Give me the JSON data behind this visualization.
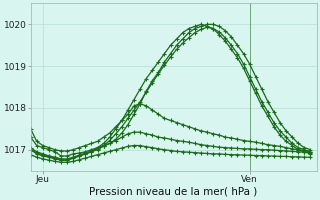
{
  "background_color": "#d8f5f0",
  "grid_color": "#b8ddd8",
  "line_color": "#1a6b1a",
  "xlabel": "Pression niveau de la mer( hPa )",
  "xlim": [
    0,
    47
  ],
  "ylim": [
    1016.5,
    1020.5
  ],
  "yticks": [
    1017,
    1018,
    1019,
    1020
  ],
  "xtick_labels": [
    "Jeu",
    "Ven"
  ],
  "xtick_positions": [
    2,
    36
  ],
  "vline_x": 36,
  "series": [
    [
      1017.3,
      1017.1,
      1017.05,
      1017.0,
      1016.95,
      1016.85,
      1016.85,
      1016.9,
      1016.92,
      1016.95,
      1017.0,
      1017.05,
      1017.1,
      1017.15,
      1017.25,
      1017.4,
      1017.6,
      1017.85,
      1018.1,
      1018.4,
      1018.65,
      1018.85,
      1019.1,
      1019.3,
      1019.5,
      1019.65,
      1019.8,
      1019.9,
      1019.95,
      1020.0,
      1020.0,
      1019.95,
      1019.85,
      1019.7,
      1019.5,
      1019.3,
      1019.05,
      1018.75,
      1018.45,
      1018.15,
      1017.9,
      1017.65,
      1017.45,
      1017.3,
      1017.15,
      1017.05,
      1017.0
    ],
    [
      1017.05,
      1016.95,
      1016.9,
      1016.85,
      1016.8,
      1016.75,
      1016.75,
      1016.8,
      1016.85,
      1016.9,
      1016.95,
      1017.05,
      1017.15,
      1017.3,
      1017.5,
      1017.7,
      1017.95,
      1018.2,
      1018.45,
      1018.7,
      1018.9,
      1019.1,
      1019.3,
      1019.5,
      1019.65,
      1019.8,
      1019.9,
      1019.95,
      1020.0,
      1019.95,
      1019.9,
      1019.75,
      1019.6,
      1019.4,
      1019.2,
      1018.95,
      1018.65,
      1018.35,
      1018.05,
      1017.8,
      1017.55,
      1017.35,
      1017.2,
      1017.1,
      1017.0,
      1016.95,
      1016.9
    ],
    [
      1017.0,
      1016.9,
      1016.85,
      1016.82,
      1016.78,
      1016.75,
      1016.75,
      1016.8,
      1016.85,
      1016.9,
      1016.95,
      1017.0,
      1017.1,
      1017.22,
      1017.38,
      1017.55,
      1017.75,
      1017.95,
      1018.15,
      1018.38,
      1018.6,
      1018.82,
      1019.02,
      1019.22,
      1019.4,
      1019.55,
      1019.68,
      1019.8,
      1019.88,
      1019.93,
      1019.9,
      1019.82,
      1019.68,
      1019.5,
      1019.3,
      1019.05,
      1018.75,
      1018.45,
      1018.15,
      1017.9,
      1017.65,
      1017.45,
      1017.3,
      1017.15,
      1017.05,
      1017.0,
      1016.95
    ],
    [
      1017.5,
      1017.2,
      1017.1,
      1017.05,
      1017.0,
      1016.97,
      1016.97,
      1017.0,
      1017.05,
      1017.1,
      1017.15,
      1017.2,
      1017.3,
      1017.4,
      1017.55,
      1017.7,
      1017.85,
      1018.05,
      1018.1,
      1018.05,
      1017.95,
      1017.85,
      1017.75,
      1017.7,
      1017.65,
      1017.6,
      1017.55,
      1017.5,
      1017.45,
      1017.42,
      1017.38,
      1017.35,
      1017.3,
      1017.28,
      1017.25,
      1017.22,
      1017.2,
      1017.18,
      1017.15,
      1017.12,
      1017.1,
      1017.08,
      1017.05,
      1017.02,
      1017.0,
      1016.98,
      1016.95
    ],
    [
      1017.0,
      1016.92,
      1016.88,
      1016.85,
      1016.82,
      1016.78,
      1016.78,
      1016.82,
      1016.87,
      1016.92,
      1016.97,
      1017.02,
      1017.08,
      1017.15,
      1017.22,
      1017.3,
      1017.38,
      1017.42,
      1017.42,
      1017.38,
      1017.35,
      1017.3,
      1017.28,
      1017.25,
      1017.22,
      1017.2,
      1017.18,
      1017.15,
      1017.12,
      1017.1,
      1017.08,
      1017.06,
      1017.05,
      1017.04,
      1017.03,
      1017.02,
      1017.02,
      1017.01,
      1017.0,
      1017.0,
      1016.99,
      1016.98,
      1016.97,
      1016.96,
      1016.95,
      1016.94,
      1016.93
    ],
    [
      1016.88,
      1016.82,
      1016.78,
      1016.75,
      1016.72,
      1016.7,
      1016.7,
      1016.72,
      1016.76,
      1016.8,
      1016.84,
      1016.88,
      1016.92,
      1016.96,
      1017.0,
      1017.04,
      1017.08,
      1017.1,
      1017.1,
      1017.07,
      1017.05,
      1017.02,
      1017.0,
      1016.98,
      1016.96,
      1016.95,
      1016.94,
      1016.93,
      1016.92,
      1016.91,
      1016.9,
      1016.9,
      1016.89,
      1016.88,
      1016.88,
      1016.87,
      1016.87,
      1016.86,
      1016.86,
      1016.85,
      1016.85,
      1016.84,
      1016.84,
      1016.83,
      1016.83,
      1016.82,
      1016.82
    ]
  ]
}
